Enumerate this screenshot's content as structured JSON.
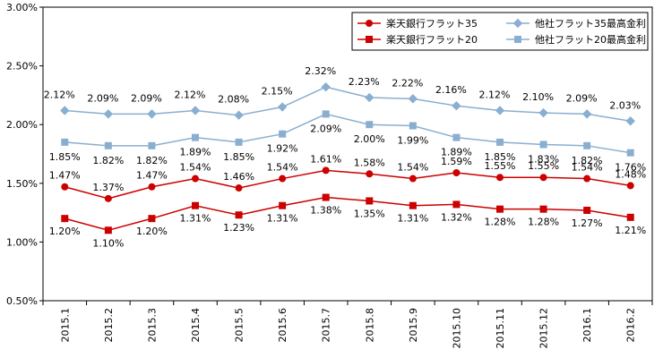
{
  "chart_data": {
    "type": "line",
    "categories": [
      "2015.1",
      "2015.2",
      "2015.3",
      "2015.4",
      "2015.5",
      "2015.6",
      "2015.7",
      "2015.8",
      "2015.9",
      "2015.10",
      "2015.11",
      "2015.12",
      "2016.1",
      "2016.2"
    ],
    "ylim": [
      0.5,
      3.0
    ],
    "yticks": [
      "0.50%",
      "1.00%",
      "1.50%",
      "2.00%",
      "2.50%",
      "3.00%"
    ],
    "ytick_values": [
      0.5,
      1.0,
      1.5,
      2.0,
      2.5,
      3.0
    ],
    "grid": false,
    "legend_placement": "top-right",
    "series": [
      {
        "name": "楽天銀行フラット35",
        "color": "#cc0000",
        "marker": "circle",
        "values": [
          1.47,
          1.37,
          1.47,
          1.54,
          1.46,
          1.54,
          1.61,
          1.58,
          1.54,
          1.59,
          1.55,
          1.55,
          1.54,
          1.48
        ],
        "labels": [
          "1.47%",
          "1.37%",
          "1.47%",
          "1.54%",
          "1.46%",
          "1.54%",
          "1.61%",
          "1.58%",
          "1.54%",
          "1.59%",
          "1.55%",
          "1.55%",
          "1.54%",
          "1.48%"
        ]
      },
      {
        "name": "楽天銀行フラット20",
        "color": "#cc0000",
        "marker": "square",
        "values": [
          1.2,
          1.1,
          1.2,
          1.31,
          1.23,
          1.31,
          1.38,
          1.35,
          1.31,
          1.32,
          1.28,
          1.28,
          1.27,
          1.21
        ],
        "labels": [
          "1.20%",
          "1.10%",
          "1.20%",
          "1.31%",
          "1.23%",
          "1.31%",
          "1.38%",
          "1.35%",
          "1.31%",
          "1.32%",
          "1.28%",
          "1.28%",
          "1.27%",
          "1.21%"
        ]
      },
      {
        "name": "他社フラット35最高金利",
        "color": "#8aaed0",
        "marker": "diamond",
        "values": [
          2.12,
          2.09,
          2.09,
          2.12,
          2.08,
          2.15,
          2.32,
          2.23,
          2.22,
          2.16,
          2.12,
          2.1,
          2.09,
          2.03
        ],
        "labels": [
          "2.12%",
          "2.09%",
          "2.09%",
          "2.12%",
          "2.08%",
          "2.15%",
          "2.32%",
          "2.23%",
          "2.22%",
          "2.16%",
          "2.12%",
          "2.10%",
          "2.09%",
          "2.03%"
        ]
      },
      {
        "name": "他社フラット20最高金利",
        "color": "#8aaed0",
        "marker": "square",
        "values": [
          1.85,
          1.82,
          1.82,
          1.89,
          1.85,
          1.92,
          2.09,
          2.0,
          1.99,
          1.89,
          1.85,
          1.83,
          1.82,
          1.76
        ],
        "labels": [
          "1.85%",
          "1.82%",
          "1.82%",
          "1.89%",
          "1.85%",
          "1.92%",
          "2.09%",
          "2.00%",
          "1.99%",
          "1.89%",
          "1.85%",
          "1.83%",
          "1.82%",
          "1.76%"
        ]
      }
    ]
  }
}
